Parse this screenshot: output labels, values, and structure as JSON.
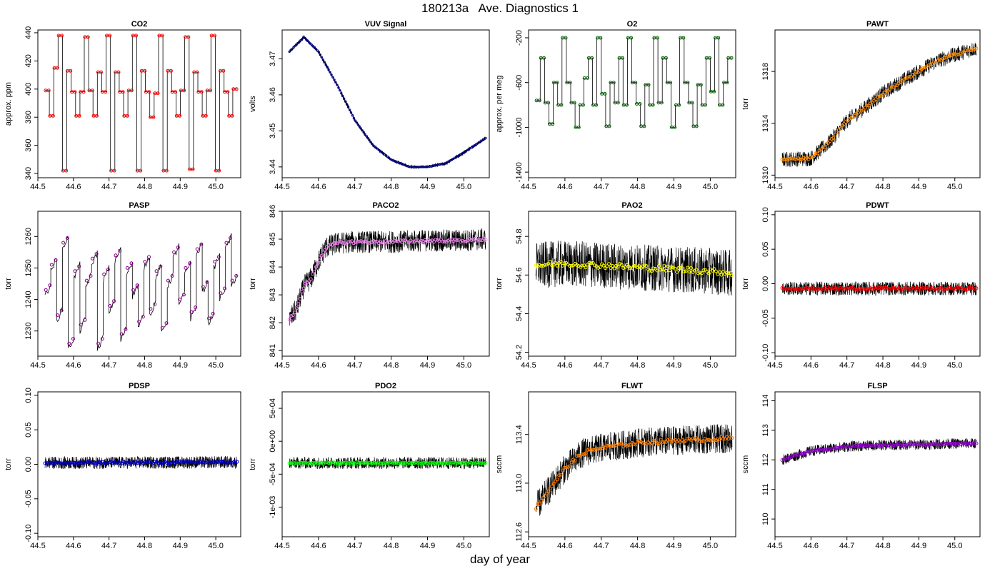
{
  "figure": {
    "title": "180213a   Ave. Diagnostics 1",
    "xlabel": "day of year"
  },
  "chart_data": [
    {
      "type": "line",
      "title": "CO2",
      "ylabel": "approx. ppm",
      "xlim": [
        44.5,
        45.07
      ],
      "ylim": [
        337,
        442
      ],
      "xticks": [
        "44.5",
        "44.6",
        "44.7",
        "44.8",
        "44.9",
        "45.0"
      ],
      "yticks": [
        "340",
        "360",
        "380",
        "400",
        "420",
        "440"
      ],
      "point_color": "#ff0000",
      "pattern": "steps",
      "levels": [
        399,
        381,
        415,
        438,
        342,
        413,
        398,
        381,
        398,
        437,
        399,
        381,
        412,
        398,
        438,
        342,
        412,
        398,
        381,
        399,
        438,
        342,
        413,
        398,
        380,
        397,
        438,
        342,
        413,
        398,
        381,
        399,
        437,
        343,
        412,
        398,
        381,
        399,
        438,
        342,
        413,
        398,
        381,
        400
      ],
      "x": [
        44.52,
        45.06
      ]
    },
    {
      "type": "line",
      "title": "VUV Signal",
      "ylabel": "volts",
      "xlim": [
        44.5,
        45.07
      ],
      "ylim": [
        3.437,
        3.478
      ],
      "xticks": [
        "44.5",
        "44.6",
        "44.7",
        "44.8",
        "44.9",
        "45.0"
      ],
      "yticks": [
        "3.44",
        "3.45",
        "3.46",
        "3.47"
      ],
      "point_color": "#00008b",
      "pattern": "smooth",
      "x": [
        44.52,
        44.56,
        44.6,
        44.65,
        44.7,
        44.75,
        44.8,
        44.85,
        44.9,
        44.95,
        45.0,
        45.06
      ],
      "values": [
        3.472,
        3.476,
        3.472,
        3.463,
        3.453,
        3.446,
        3.442,
        3.44,
        3.44,
        3.441,
        3.444,
        3.448
      ],
      "noise": 0.0007
    },
    {
      "type": "line",
      "title": "O2",
      "ylabel": "approx. per meg",
      "xlim": [
        44.5,
        45.07
      ],
      "ylim": [
        -1450,
        -130
      ],
      "xticks": [
        "44.5",
        "44.6",
        "44.7",
        "44.8",
        "44.9",
        "45.0"
      ],
      "yticks": [
        "-1400",
        "-1000",
        "-600",
        "-200"
      ],
      "point_color": "#006400",
      "pattern": "steps",
      "levels": [
        -760,
        -380,
        -780,
        -970,
        -600,
        -800,
        -200,
        -600,
        -780,
        -1000,
        -800,
        -560,
        -380,
        -800,
        -200,
        -700,
        -990,
        -600,
        -780,
        -380,
        -800,
        -200,
        -600,
        -790,
        -990,
        -620,
        -800,
        -200,
        -780,
        -380,
        -600,
        -1000,
        -800,
        -200,
        -600,
        -780,
        -990,
        -620,
        -800,
        -380,
        -680,
        -200,
        -800,
        -600,
        -380
      ],
      "x": [
        44.52,
        45.06
      ]
    },
    {
      "type": "line",
      "title": "PAWT",
      "ylabel": "torr",
      "xlim": [
        44.5,
        45.07
      ],
      "ylim": [
        1309.8,
        1321.2
      ],
      "xticks": [
        "44.5",
        "44.6",
        "44.7",
        "44.8",
        "44.9",
        "45.0"
      ],
      "yticks": [
        "1310",
        "1314",
        "1318"
      ],
      "point_color": "#ff8c00",
      "pattern": "noisy",
      "x": [
        44.52,
        44.6,
        44.65,
        44.7,
        44.75,
        44.8,
        44.85,
        44.9,
        44.95,
        45.0,
        45.06
      ],
      "values": [
        1311.2,
        1311.3,
        1312.5,
        1314.2,
        1315.2,
        1316.3,
        1317.2,
        1318.0,
        1318.8,
        1319.3,
        1319.8
      ],
      "noise": 0.6
    },
    {
      "type": "line",
      "title": "PASP",
      "ylabel": "torr",
      "xlim": [
        44.5,
        45.07
      ],
      "ylim": [
        1222,
        1268
      ],
      "xticks": [
        "44.5",
        "44.6",
        "44.7",
        "44.8",
        "44.9",
        "45.0"
      ],
      "yticks": [
        "1230",
        "1240",
        "1250",
        "1260"
      ],
      "point_color": "#8b008b",
      "pattern": "steps",
      "levels": [
        1243,
        1251,
        1235,
        1258,
        1226,
        1249,
        1232,
        1246,
        1253,
        1226,
        1248,
        1238,
        1254,
        1229,
        1250,
        1243,
        1233,
        1252,
        1237,
        1249,
        1231,
        1246,
        1255,
        1240,
        1250,
        1236,
        1256,
        1244,
        1234,
        1252,
        1242,
        1258,
        1246
      ],
      "x": [
        44.52,
        45.06
      ],
      "noise": 2.0
    },
    {
      "type": "line",
      "title": "PACO2",
      "ylabel": "torr",
      "xlim": [
        44.5,
        45.07
      ],
      "ylim": [
        840.8,
        846
      ],
      "xticks": [
        "44.5",
        "44.6",
        "44.7",
        "44.8",
        "44.9",
        "45.0"
      ],
      "yticks": [
        "841",
        "842",
        "843",
        "844",
        "845",
        "846"
      ],
      "point_color": "#ee82ee",
      "pattern": "noisy",
      "x": [
        44.52,
        44.54,
        44.56,
        44.58,
        44.6,
        44.62,
        44.65,
        44.7,
        44.8,
        44.9,
        45.0,
        45.06
      ],
      "values": [
        842.1,
        842.5,
        843.3,
        843.6,
        844.2,
        844.7,
        844.85,
        844.9,
        844.9,
        844.95,
        844.95,
        845.0
      ],
      "noise": 0.4
    },
    {
      "type": "line",
      "title": "PAO2",
      "ylabel": "torr",
      "xlim": [
        44.5,
        45.07
      ],
      "ylim": [
        54.18,
        54.93
      ],
      "xticks": [
        "44.5",
        "44.6",
        "44.7",
        "44.8",
        "44.9",
        "45.0"
      ],
      "yticks": [
        "54.2",
        "54.4",
        "54.6",
        "54.8"
      ],
      "point_color": "#ffff00",
      "pattern": "noisy",
      "x": [
        44.52,
        44.6,
        44.7,
        44.8,
        44.9,
        45.0,
        45.06
      ],
      "values": [
        54.65,
        54.66,
        54.65,
        54.64,
        54.63,
        54.62,
        54.61
      ],
      "noise": 0.12
    },
    {
      "type": "line",
      "title": "PDWT",
      "ylabel": "torr",
      "xlim": [
        44.5,
        45.07
      ],
      "ylim": [
        -0.105,
        0.105
      ],
      "xticks": [
        "44.5",
        "44.6",
        "44.7",
        "44.8",
        "44.9",
        "45.0"
      ],
      "yticks": [
        "-0.10",
        "-0.05",
        "0.00",
        "0.05",
        "0.10"
      ],
      "point_color": "#ff0000",
      "pattern": "noisy",
      "x": [
        44.52,
        45.06
      ],
      "values": [
        -0.007,
        -0.007
      ],
      "noise": 0.01
    },
    {
      "type": "line",
      "title": "PDSP",
      "ylabel": "torr",
      "xlim": [
        44.5,
        45.07
      ],
      "ylim": [
        -0.105,
        0.105
      ],
      "xticks": [
        "44.5",
        "44.6",
        "44.7",
        "44.8",
        "44.9",
        "45.0"
      ],
      "yticks": [
        "-0.10",
        "-0.05",
        "0.00",
        "0.05",
        "0.10"
      ],
      "point_color": "#0000cd",
      "pattern": "noisy",
      "x": [
        44.52,
        45.06
      ],
      "values": [
        0.002,
        0.003
      ],
      "noise": 0.009
    },
    {
      "type": "line",
      "title": "PDO2",
      "ylabel": "torr",
      "xlim": [
        44.5,
        45.07
      ],
      "ylim": [
        -0.00145,
        0.00075
      ],
      "xticks": [
        "44.5",
        "44.6",
        "44.7",
        "44.8",
        "44.9",
        "45.0"
      ],
      "yticks": [
        "-1e-03",
        "-5e-04",
        "0e+00",
        "5e-04"
      ],
      "point_color": "#00ff00",
      "pattern": "noisy",
      "x": [
        44.52,
        45.06
      ],
      "values": [
        -0.00033,
        -0.00033
      ],
      "noise": 9e-05
    },
    {
      "type": "line",
      "title": "FLWT",
      "ylabel": "sccm",
      "xlim": [
        44.5,
        45.07
      ],
      "ylim": [
        112.56,
        113.75
      ],
      "xticks": [
        "44.5",
        "44.6",
        "44.7",
        "44.8",
        "44.9",
        "45.0"
      ],
      "yticks": [
        "112.6",
        "113.0",
        "113.4"
      ],
      "point_color": "#ff7f00",
      "pattern": "noisy",
      "x": [
        44.52,
        44.55,
        44.6,
        44.65,
        44.7,
        44.75,
        44.8,
        44.9,
        45.0,
        45.06
      ],
      "values": [
        112.8,
        112.92,
        113.12,
        113.25,
        113.29,
        113.31,
        113.33,
        113.35,
        113.36,
        113.37
      ],
      "noise": 0.12
    },
    {
      "type": "line",
      "title": "FLSP",
      "ylabel": "sccm",
      "xlim": [
        44.5,
        45.07
      ],
      "ylim": [
        109.4,
        114.3
      ],
      "xticks": [
        "44.5",
        "44.6",
        "44.7",
        "44.8",
        "44.9",
        "45.0"
      ],
      "yticks": [
        "110",
        "111",
        "112",
        "113",
        "114"
      ],
      "point_color": "#9400d3",
      "pattern": "noisy",
      "x": [
        44.52,
        44.56,
        44.6,
        44.7,
        44.8,
        44.9,
        45.0,
        45.06
      ],
      "values": [
        112.0,
        112.15,
        112.3,
        112.45,
        112.5,
        112.52,
        112.55,
        112.56
      ],
      "noise": 0.18
    }
  ]
}
